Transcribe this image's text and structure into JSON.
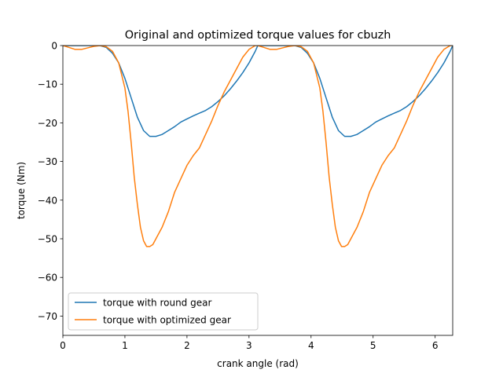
{
  "chart_data": {
    "type": "line",
    "title": "Original and optimized torque values for cbuzh",
    "xlabel": "crank angle (rad)",
    "ylabel": "torque (Nm)",
    "xlim": [
      0,
      6.283
    ],
    "ylim": [
      -75,
      0
    ],
    "xticks": [
      0,
      1,
      2,
      3,
      4,
      5,
      6
    ],
    "yticks": [
      0,
      -10,
      -20,
      -30,
      -40,
      -50,
      -60,
      -70
    ],
    "grid": false,
    "legend_position": "lower-left",
    "series": [
      {
        "name": "torque with round gear",
        "color": "#1f77b4",
        "x": [
          0.0,
          0.4,
          0.6,
          0.7,
          0.8,
          0.9,
          1.0,
          1.1,
          1.2,
          1.3,
          1.4,
          1.5,
          1.6,
          1.7,
          1.8,
          1.9,
          2.0,
          2.1,
          2.2,
          2.3,
          2.4,
          2.5,
          2.6,
          2.7,
          2.8,
          2.9,
          3.0,
          3.1,
          3.14159,
          3.54159,
          3.74159,
          3.84159,
          3.94159,
          4.04159,
          4.14159,
          4.24159,
          4.34159,
          4.44159,
          4.54159,
          4.64159,
          4.74159,
          4.84159,
          4.94159,
          5.04159,
          5.14159,
          5.24159,
          5.34159,
          5.44159,
          5.54159,
          5.64159,
          5.74159,
          5.84159,
          5.94159,
          6.04159,
          6.14159,
          6.24159,
          6.28318
        ],
        "y": [
          0.0,
          0.0,
          0.0,
          -0.5,
          -2.0,
          -4.5,
          -8.5,
          -13.5,
          -18.5,
          -22.0,
          -23.5,
          -23.5,
          -23.0,
          -22.0,
          -21.0,
          -19.8,
          -19.0,
          -18.2,
          -17.5,
          -16.8,
          -15.8,
          -14.5,
          -13.0,
          -11.2,
          -9.2,
          -7.0,
          -4.5,
          -1.5,
          0.0,
          0.0,
          0.0,
          -0.5,
          -2.0,
          -4.5,
          -8.5,
          -13.5,
          -18.5,
          -22.0,
          -23.5,
          -23.5,
          -23.0,
          -22.0,
          -21.0,
          -19.8,
          -19.0,
          -18.2,
          -17.5,
          -16.8,
          -15.8,
          -14.5,
          -13.0,
          -11.2,
          -9.2,
          -7.0,
          -4.5,
          -1.5,
          0.0
        ]
      },
      {
        "name": "torque with optimized gear",
        "color": "#ff7f0e",
        "x": [
          0.0,
          0.1,
          0.2,
          0.3,
          0.4,
          0.5,
          0.6,
          0.7,
          0.8,
          0.9,
          1.0,
          1.05,
          1.1,
          1.15,
          1.2,
          1.25,
          1.3,
          1.35,
          1.4,
          1.45,
          1.5,
          1.55,
          1.6,
          1.7,
          1.8,
          1.9,
          2.0,
          2.1,
          2.2,
          2.3,
          2.4,
          2.5,
          2.6,
          2.7,
          2.8,
          2.9,
          3.0,
          3.1,
          3.14159,
          3.24159,
          3.34159,
          3.44159,
          3.54159,
          3.64159,
          3.74159,
          3.84159,
          3.94159,
          4.04159,
          4.14159,
          4.19159,
          4.24159,
          4.29159,
          4.34159,
          4.39159,
          4.44159,
          4.49159,
          4.54159,
          4.59159,
          4.64159,
          4.69159,
          4.74159,
          4.84159,
          4.94159,
          5.04159,
          5.14159,
          5.24159,
          5.34159,
          5.44159,
          5.54159,
          5.64159,
          5.74159,
          5.84159,
          5.94159,
          6.04159,
          6.14159,
          6.24159,
          6.28318
        ],
        "y": [
          0.0,
          -0.5,
          -1.0,
          -1.0,
          -0.6,
          -0.2,
          0.0,
          -0.3,
          -1.5,
          -4.5,
          -11.0,
          -17.0,
          -25.0,
          -34.0,
          -41.0,
          -47.0,
          -50.5,
          -52.0,
          -52.0,
          -51.5,
          -50.0,
          -48.5,
          -47.0,
          -43.0,
          -38.0,
          -34.5,
          -31.0,
          -28.5,
          -26.5,
          -23.0,
          -19.5,
          -15.5,
          -12.0,
          -9.0,
          -6.0,
          -3.0,
          -1.0,
          0.0,
          0.0,
          -0.5,
          -1.0,
          -1.0,
          -0.6,
          -0.2,
          0.0,
          -0.3,
          -1.5,
          -4.5,
          -11.0,
          -17.0,
          -25.0,
          -34.0,
          -41.0,
          -47.0,
          -50.5,
          -52.0,
          -52.0,
          -51.5,
          -50.0,
          -48.5,
          -47.0,
          -43.0,
          -38.0,
          -34.5,
          -31.0,
          -28.5,
          -26.5,
          -23.0,
          -19.5,
          -15.5,
          -12.0,
          -9.0,
          -6.0,
          -3.0,
          -1.0,
          0.0,
          0.0
        ]
      }
    ]
  }
}
